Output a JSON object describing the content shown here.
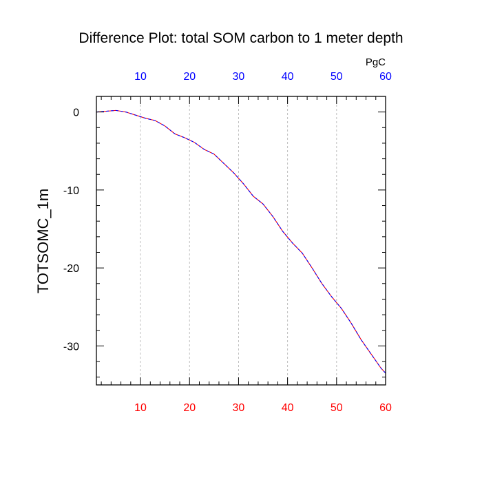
{
  "chart_data": {
    "type": "line",
    "title": "Difference Plot: total SOM carbon to 1 meter depth",
    "ylabel": "TOTSOMC_1m",
    "top_axis_unit": "PgC",
    "xlim": [
      1,
      60
    ],
    "ylim": [
      -35,
      2
    ],
    "x_ticks": [
      10,
      20,
      30,
      40,
      50,
      60
    ],
    "y_ticks": [
      0,
      -10,
      -20,
      -30
    ],
    "grid": "vertical-dashed",
    "colors": {
      "bottom_tick_labels": "#ff0000",
      "top_tick_labels": "#0000ff",
      "line_primary": "#ff0000",
      "line_secondary": "#0000ff"
    },
    "series": [
      {
        "x": [
          1,
          3,
          5,
          7,
          9,
          11,
          13,
          15,
          17,
          19,
          21,
          23,
          25,
          27,
          29,
          31,
          33,
          35,
          37,
          39,
          41,
          43,
          45,
          47,
          49,
          51,
          53,
          55,
          57,
          59,
          60
        ],
        "y": [
          0.0,
          0.1,
          0.2,
          0.0,
          -0.4,
          -0.8,
          -1.1,
          -1.8,
          -2.8,
          -3.3,
          -3.9,
          -4.8,
          -5.4,
          -6.6,
          -7.8,
          -9.2,
          -10.8,
          -11.8,
          -13.4,
          -15.3,
          -16.8,
          -18.1,
          -20.0,
          -22.0,
          -23.7,
          -25.2,
          -27.1,
          -29.2,
          -31.0,
          -32.8,
          -33.5
        ]
      }
    ]
  }
}
